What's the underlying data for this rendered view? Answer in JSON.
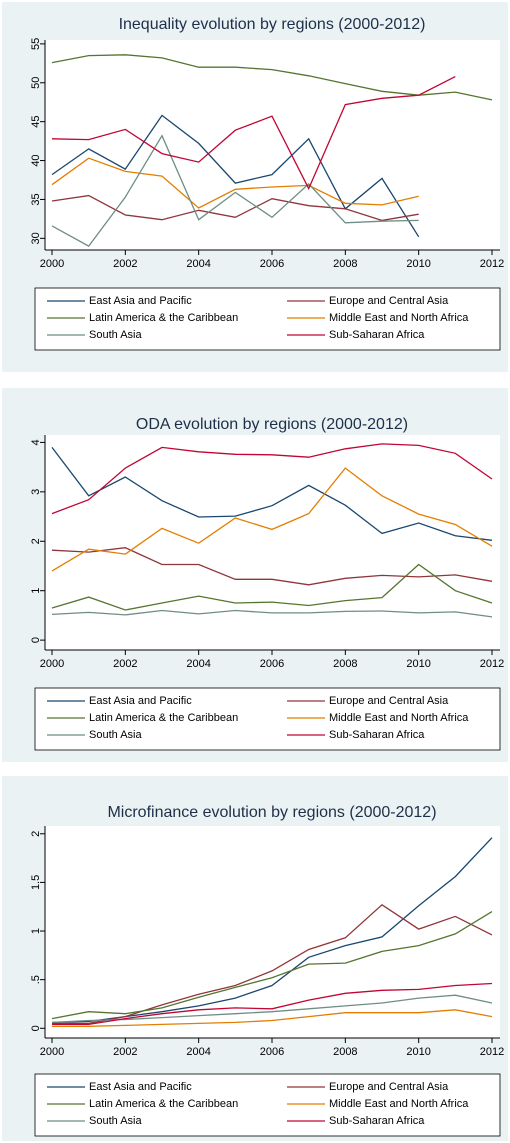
{
  "chart_data": [
    {
      "type": "line",
      "title": "Inequality evolution by regions (2000-2012)",
      "x": [
        2000,
        2001,
        2002,
        2003,
        2004,
        2005,
        2006,
        2007,
        2008,
        2009,
        2010,
        2011,
        2012
      ],
      "xlim": [
        2000,
        2012
      ],
      "xticks": [
        2000,
        2002,
        2004,
        2006,
        2008,
        2010,
        2012
      ],
      "ylim": [
        28.5,
        55.5
      ],
      "yticks": [
        30,
        35,
        40,
        45,
        50,
        55
      ],
      "series": [
        {
          "name": "East Asia and Pacific",
          "color": "#1a476f",
          "values": [
            38.2,
            41.5,
            38.9,
            45.8,
            42.2,
            37.1,
            38.2,
            42.8,
            33.8,
            37.7,
            30.2,
            null,
            null
          ]
        },
        {
          "name": "Europe and Central Asia",
          "color": "#90353b",
          "values": [
            34.8,
            35.5,
            33.0,
            32.4,
            33.6,
            32.7,
            35.1,
            34.2,
            33.8,
            32.3,
            33.1,
            null,
            null
          ]
        },
        {
          "name": "Latin America & the Caribbean",
          "color": "#55752f",
          "values": [
            52.6,
            53.5,
            53.6,
            53.2,
            52.0,
            52.0,
            51.7,
            50.9,
            49.9,
            48.9,
            48.4,
            48.8,
            47.8
          ]
        },
        {
          "name": "Middle East and North Africa",
          "color": "#e37e00",
          "values": [
            36.9,
            40.3,
            38.6,
            38.0,
            33.9,
            36.3,
            36.6,
            36.8,
            34.5,
            34.3,
            35.4,
            null,
            null
          ]
        },
        {
          "name": "South Asia",
          "color": "#6e8e84",
          "values": [
            31.6,
            29.0,
            35.3,
            43.2,
            32.4,
            35.9,
            32.7,
            37.0,
            32.0,
            32.2,
            32.3,
            null,
            null
          ]
        },
        {
          "name": "Sub-Saharan Africa",
          "color": "#c10534",
          "values": [
            42.8,
            42.7,
            44.0,
            40.9,
            39.8,
            43.9,
            45.7,
            36.4,
            47.2,
            48.0,
            48.4,
            50.8,
            null
          ]
        }
      ]
    },
    {
      "type": "line",
      "title": "ODA evolution by regions (2000-2012)",
      "x": [
        2000,
        2001,
        2002,
        2003,
        2004,
        2005,
        2006,
        2007,
        2008,
        2009,
        2010,
        2011,
        2012
      ],
      "xlim": [
        2000,
        2012
      ],
      "xticks": [
        2000,
        2002,
        2004,
        2006,
        2008,
        2010,
        2012
      ],
      "ylim": [
        -0.2,
        4.15
      ],
      "yticks": [
        0,
        1,
        2,
        3,
        4
      ],
      "series": [
        {
          "name": "East Asia and Pacific",
          "color": "#1a476f",
          "values": [
            3.9,
            2.92,
            3.3,
            2.82,
            2.49,
            2.51,
            2.72,
            3.13,
            2.73,
            2.16,
            2.37,
            2.11,
            2.02
          ]
        },
        {
          "name": "Europe and Central Asia",
          "color": "#90353b",
          "values": [
            1.82,
            1.78,
            1.87,
            1.53,
            1.53,
            1.23,
            1.23,
            1.12,
            1.25,
            1.31,
            1.28,
            1.32,
            1.19
          ]
        },
        {
          "name": "Latin America & the Caribbean",
          "color": "#55752f",
          "values": [
            0.65,
            0.87,
            0.61,
            0.75,
            0.89,
            0.75,
            0.77,
            0.7,
            0.8,
            0.86,
            1.53,
            1.0,
            0.75
          ]
        },
        {
          "name": "Middle East and North Africa",
          "color": "#e37e00",
          "values": [
            1.4,
            1.84,
            1.74,
            2.26,
            1.96,
            2.47,
            2.24,
            2.56,
            3.48,
            2.92,
            2.55,
            2.34,
            1.9
          ]
        },
        {
          "name": "South Asia",
          "color": "#6e8e84",
          "values": [
            0.52,
            0.56,
            0.51,
            0.6,
            0.53,
            0.6,
            0.55,
            0.55,
            0.58,
            0.59,
            0.55,
            0.57,
            0.47
          ]
        },
        {
          "name": "Sub-Saharan Africa",
          "color": "#c10534",
          "values": [
            2.56,
            2.84,
            3.48,
            3.9,
            3.81,
            3.76,
            3.75,
            3.7,
            3.87,
            3.97,
            3.94,
            3.78,
            3.26
          ]
        }
      ]
    },
    {
      "type": "line",
      "title": "Microfinance evolution by regions (2000-2012)",
      "x": [
        2000,
        2001,
        2002,
        2003,
        2004,
        2005,
        2006,
        2007,
        2008,
        2009,
        2010,
        2011,
        2012
      ],
      "xlim": [
        2000,
        2012
      ],
      "xticks": [
        2000,
        2002,
        2004,
        2006,
        2008,
        2010,
        2012
      ],
      "ylim": [
        -0.1,
        2.08
      ],
      "yticks": [
        0,
        {
          "value": 0.5,
          "label": ".5"
        },
        1,
        1.5,
        2
      ],
      "series": [
        {
          "name": "East Asia and Pacific",
          "color": "#1a476f",
          "values": [
            0.06,
            0.07,
            0.12,
            0.17,
            0.23,
            0.31,
            0.44,
            0.73,
            0.85,
            0.94,
            1.26,
            1.56,
            1.96
          ]
        },
        {
          "name": "Europe and Central Asia",
          "color": "#90353b",
          "values": [
            0.05,
            0.05,
            0.12,
            0.24,
            0.35,
            0.44,
            0.59,
            0.81,
            0.93,
            1.27,
            1.02,
            1.15,
            0.96
          ]
        },
        {
          "name": "Latin America & the Caribbean",
          "color": "#55752f",
          "values": [
            0.1,
            0.17,
            0.15,
            0.21,
            0.32,
            0.42,
            0.52,
            0.66,
            0.67,
            0.79,
            0.85,
            0.97,
            1.2
          ]
        },
        {
          "name": "Middle East and North Africa",
          "color": "#e37e00",
          "values": [
            0.02,
            0.02,
            0.03,
            0.04,
            0.05,
            0.06,
            0.08,
            0.12,
            0.16,
            0.16,
            0.16,
            0.19,
            0.12
          ]
        },
        {
          "name": "South Asia",
          "color": "#6e8e84",
          "values": [
            0.06,
            0.08,
            0.09,
            0.11,
            0.13,
            0.15,
            0.17,
            0.2,
            0.23,
            0.26,
            0.31,
            0.34,
            0.26
          ]
        },
        {
          "name": "Sub-Saharan Africa",
          "color": "#c10534",
          "values": [
            0.04,
            0.04,
            0.1,
            0.15,
            0.19,
            0.21,
            0.2,
            0.29,
            0.36,
            0.39,
            0.4,
            0.44,
            0.46
          ]
        }
      ]
    }
  ]
}
